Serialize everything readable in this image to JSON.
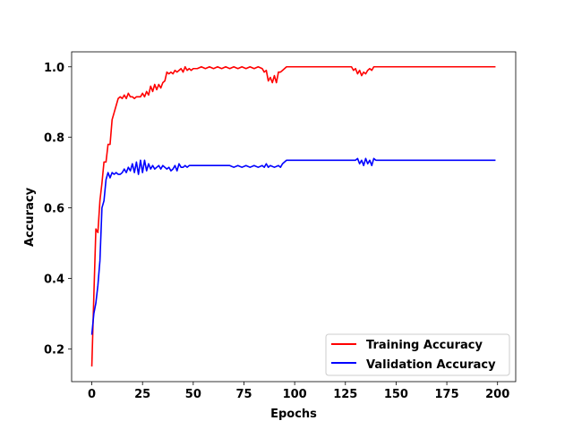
{
  "chart_data": {
    "type": "line",
    "title": "",
    "xlabel": "Epochs",
    "ylabel": "Accuracy",
    "xlim": [
      -9.95,
      208.95
    ],
    "ylim": [
      0.107,
      1.0425
    ],
    "xticks": [
      0,
      25,
      50,
      75,
      100,
      125,
      150,
      175,
      200
    ],
    "yticks": [
      0.2,
      0.4,
      0.6,
      0.8,
      1.0
    ],
    "ytick_labels": [
      "0.2",
      "0.4",
      "0.6",
      "0.8",
      "1.0"
    ],
    "grid": false,
    "legend": "lower right",
    "series": [
      {
        "name": "Training Accuracy",
        "color": "#ff0000",
        "x": [
          0,
          1,
          2,
          3,
          4,
          5,
          6,
          7,
          8,
          9,
          10,
          11,
          12,
          13,
          14,
          15,
          16,
          17,
          18,
          19,
          20,
          21,
          22,
          23,
          24,
          25,
          26,
          27,
          28,
          29,
          30,
          31,
          32,
          33,
          34,
          35,
          36,
          37,
          38,
          39,
          40,
          41,
          42,
          43,
          44,
          45,
          46,
          47,
          48,
          49,
          50,
          52,
          54,
          56,
          58,
          60,
          62,
          64,
          66,
          68,
          70,
          72,
          74,
          76,
          78,
          80,
          82,
          84,
          85,
          86,
          87,
          88,
          89,
          90,
          91,
          92,
          93,
          94,
          95,
          96,
          100,
          110,
          120,
          127,
          128,
          129,
          130,
          131,
          132,
          133,
          134,
          135,
          136,
          137,
          138,
          139,
          140,
          150,
          170,
          199
        ],
        "y": [
          0.15,
          0.35,
          0.54,
          0.53,
          0.62,
          0.67,
          0.73,
          0.73,
          0.78,
          0.78,
          0.85,
          0.87,
          0.89,
          0.91,
          0.915,
          0.91,
          0.92,
          0.91,
          0.925,
          0.915,
          0.915,
          0.91,
          0.915,
          0.915,
          0.915,
          0.925,
          0.915,
          0.93,
          0.92,
          0.945,
          0.93,
          0.95,
          0.935,
          0.95,
          0.94,
          0.955,
          0.96,
          0.985,
          0.98,
          0.985,
          0.98,
          0.99,
          0.985,
          0.99,
          0.995,
          0.985,
          1.0,
          0.99,
          0.995,
          0.99,
          0.995,
          0.995,
          1.0,
          0.995,
          1.0,
          0.995,
          1.0,
          0.995,
          1.0,
          0.995,
          1.0,
          0.995,
          1.0,
          0.995,
          1.0,
          0.995,
          1.0,
          0.995,
          0.985,
          0.99,
          0.96,
          0.97,
          0.955,
          0.975,
          0.955,
          0.985,
          0.985,
          0.99,
          0.995,
          1.0,
          1.0,
          1.0,
          1.0,
          1.0,
          1.0,
          0.99,
          0.995,
          0.98,
          0.99,
          0.975,
          0.985,
          0.98,
          0.99,
          0.995,
          0.99,
          1.0,
          1.0,
          1.0,
          1.0,
          1.0
        ]
      },
      {
        "name": "Validation Accuracy",
        "color": "#0000ff",
        "x": [
          0,
          1,
          2,
          3,
          4,
          5,
          6,
          7,
          8,
          9,
          10,
          11,
          12,
          13,
          14,
          15,
          16,
          17,
          18,
          19,
          20,
          21,
          22,
          23,
          24,
          25,
          26,
          27,
          28,
          29,
          30,
          31,
          32,
          33,
          34,
          35,
          36,
          37,
          38,
          39,
          40,
          41,
          42,
          43,
          44,
          45,
          46,
          47,
          48,
          50,
          60,
          68,
          70,
          72,
          74,
          76,
          78,
          80,
          82,
          84,
          85,
          86,
          87,
          88,
          90,
          92,
          93,
          94,
          95,
          96,
          100,
          110,
          120,
          130,
          131,
          132,
          133,
          134,
          135,
          136,
          137,
          138,
          139,
          140,
          150,
          170,
          199
        ],
        "y": [
          0.24,
          0.3,
          0.33,
          0.38,
          0.45,
          0.6,
          0.62,
          0.68,
          0.7,
          0.685,
          0.7,
          0.695,
          0.7,
          0.695,
          0.695,
          0.7,
          0.71,
          0.7,
          0.715,
          0.705,
          0.725,
          0.7,
          0.73,
          0.695,
          0.735,
          0.7,
          0.735,
          0.705,
          0.725,
          0.71,
          0.72,
          0.71,
          0.715,
          0.72,
          0.71,
          0.72,
          0.715,
          0.71,
          0.715,
          0.705,
          0.71,
          0.72,
          0.705,
          0.725,
          0.715,
          0.715,
          0.72,
          0.715,
          0.72,
          0.72,
          0.72,
          0.72,
          0.715,
          0.72,
          0.715,
          0.72,
          0.715,
          0.72,
          0.715,
          0.72,
          0.715,
          0.725,
          0.715,
          0.72,
          0.715,
          0.72,
          0.715,
          0.725,
          0.73,
          0.735,
          0.735,
          0.735,
          0.735,
          0.735,
          0.74,
          0.725,
          0.735,
          0.72,
          0.74,
          0.725,
          0.735,
          0.72,
          0.74,
          0.735,
          0.735,
          0.735,
          0.735
        ]
      }
    ]
  }
}
